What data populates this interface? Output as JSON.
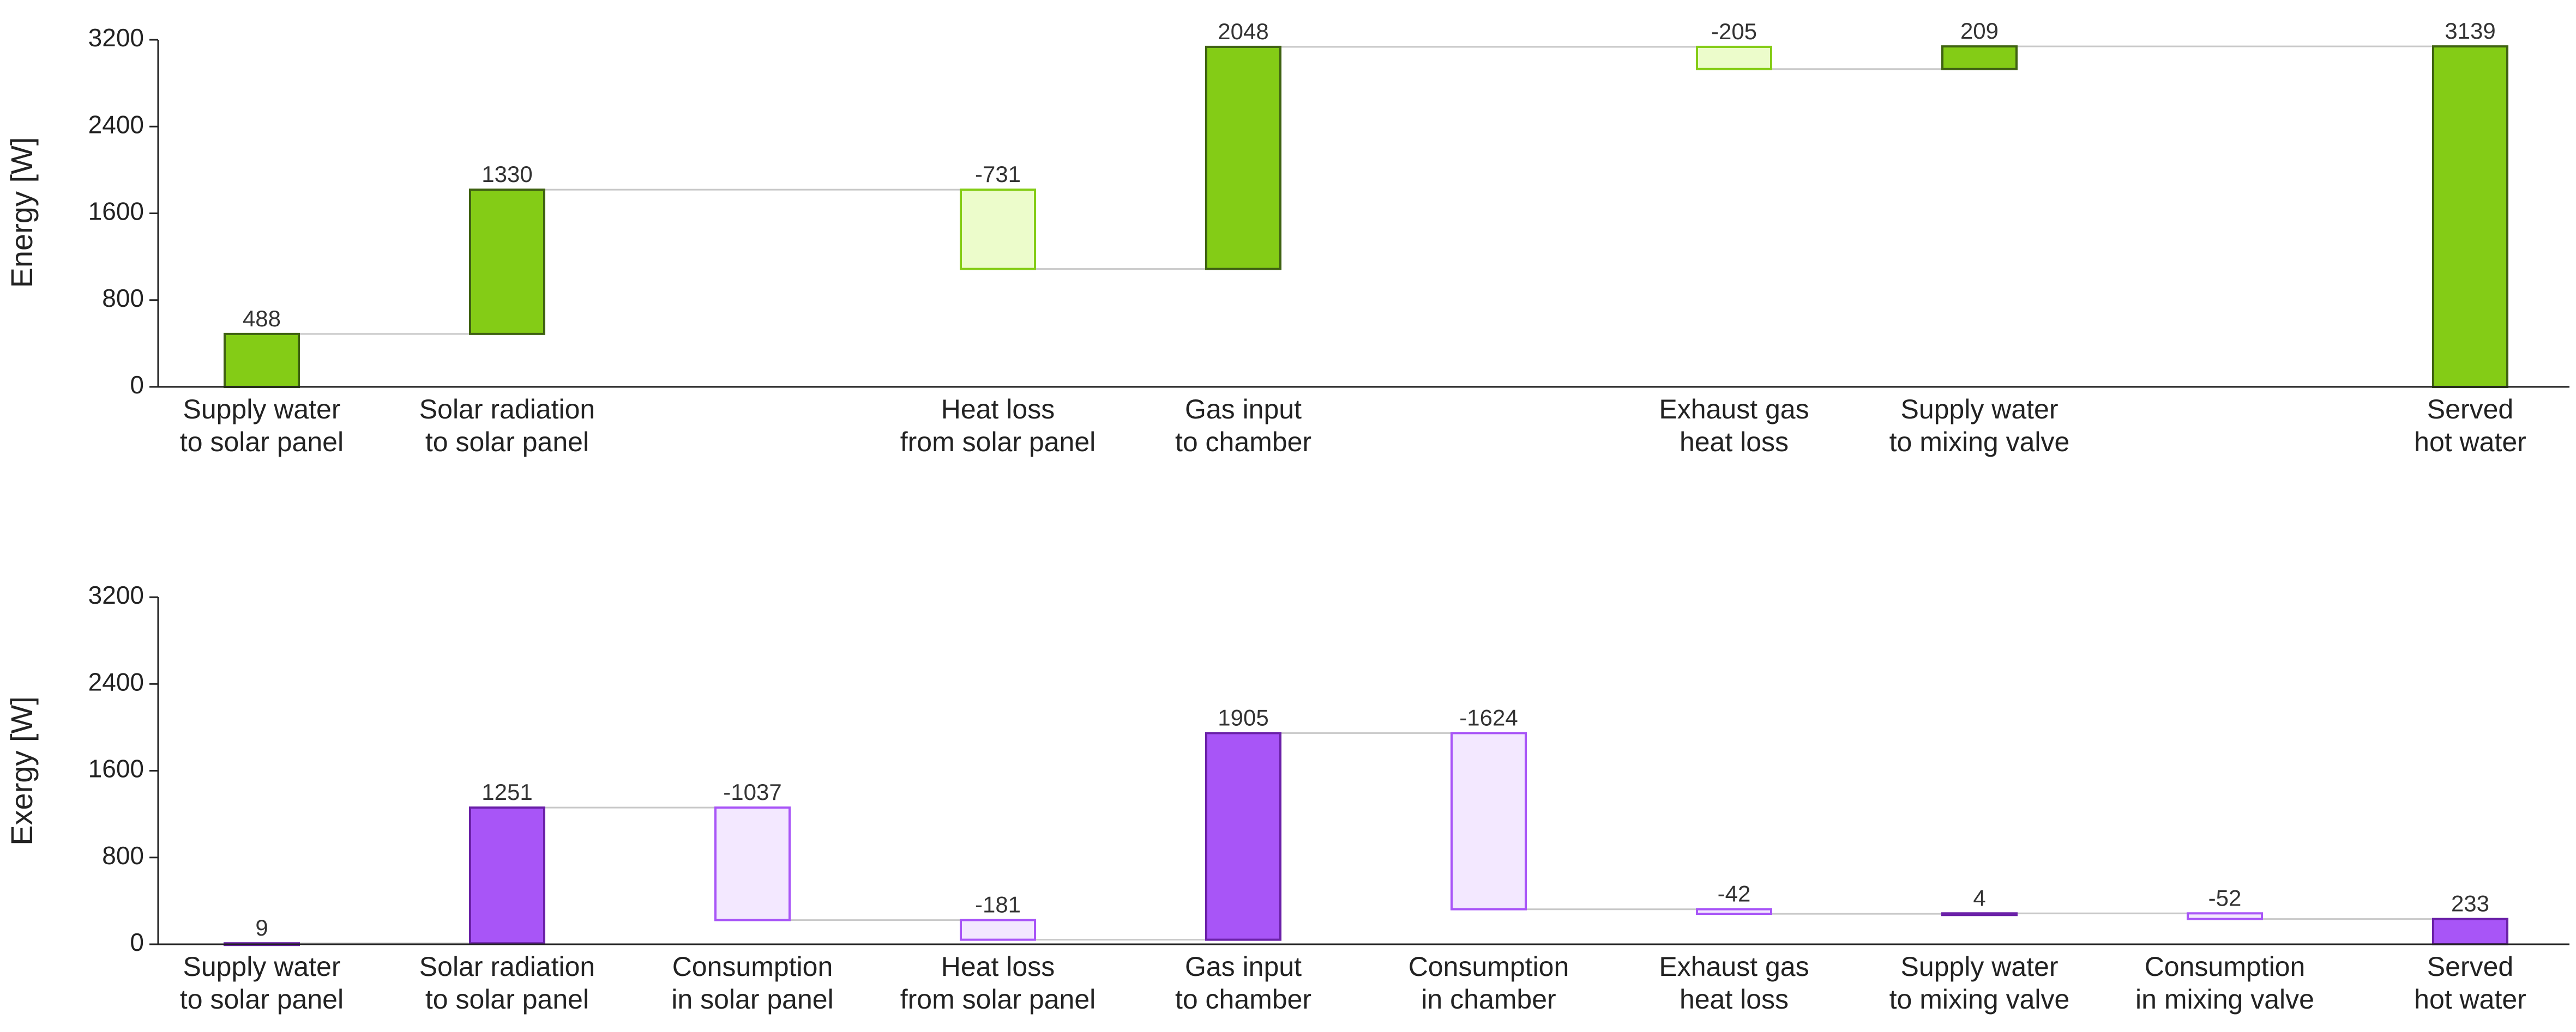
{
  "chart_data": [
    {
      "type": "waterfall",
      "ylabel": "Energy [W]",
      "ylim": [
        0,
        3200
      ],
      "yticks": [
        0,
        800,
        1600,
        2400,
        3200
      ],
      "color_increase": "#84cc16",
      "color_decrease_fill": "#ecfccb",
      "color_edge": "#3f6212",
      "color_decrease_edge": "#84cc16",
      "categories": [
        [
          "Supply water",
          "to solar panel"
        ],
        [
          "Solar radiation",
          "to solar panel"
        ],
        [
          "",
          ""
        ],
        [
          "Heat loss",
          "from solar panel"
        ],
        [
          "Gas input",
          "to chamber"
        ],
        [
          "",
          ""
        ],
        [
          "Exhaust gas",
          "heat loss"
        ],
        [
          "Supply water",
          "to mixing valve"
        ],
        [
          "",
          ""
        ],
        [
          "Served",
          "hot water"
        ]
      ],
      "values": [
        488,
        1330,
        null,
        -731,
        2048,
        null,
        -205,
        209,
        null,
        3139
      ],
      "labels": [
        "488",
        "1330",
        "",
        "-731",
        "2048",
        "",
        "-205",
        "209",
        "",
        "3139"
      ],
      "total_index": 9
    },
    {
      "type": "waterfall",
      "ylabel": "Exergy [W]",
      "ylim": [
        0,
        3200
      ],
      "yticks": [
        0,
        800,
        1600,
        2400,
        3200
      ],
      "color_increase": "#a855f7",
      "color_decrease_fill": "#f3e8ff",
      "color_edge": "#6b21a8",
      "color_decrease_edge": "#a855f7",
      "categories": [
        [
          "Supply water",
          "to solar panel"
        ],
        [
          "Solar radiation",
          "to solar panel"
        ],
        [
          "Consumption",
          "in solar panel"
        ],
        [
          "Heat loss",
          "from solar panel"
        ],
        [
          "Gas input",
          "to chamber"
        ],
        [
          "Consumption",
          "in chamber"
        ],
        [
          "Exhaust gas",
          "heat loss"
        ],
        [
          "Supply water",
          "to mixing valve"
        ],
        [
          "Consumption",
          "in mixing valve"
        ],
        [
          "Served",
          "hot water"
        ]
      ],
      "values": [
        9,
        1251,
        -1037,
        -181,
        1905,
        -1624,
        -42,
        4,
        -52,
        233
      ],
      "labels": [
        "9",
        "1251",
        "-1037",
        "-181",
        "1905",
        "-1624",
        "-42",
        "4",
        "-52",
        "233"
      ],
      "total_index": 9
    }
  ]
}
